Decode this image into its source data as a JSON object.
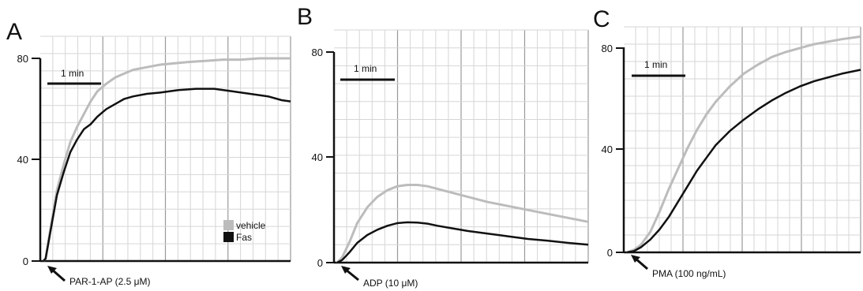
{
  "colors": {
    "vehicle": "#bcbcbc",
    "fas": "#111111",
    "grid": "#d6d6d6",
    "grid_major": "#9a9a9a",
    "axis": "#111111"
  },
  "legend": {
    "vehicle": "vehicle",
    "fas": "Fas"
  },
  "chart_data": [
    {
      "type": "line",
      "panel_letter": "A",
      "y_ticks": [
        "0",
        "40",
        "80"
      ],
      "ylim": [
        0,
        80
      ],
      "xlim": [
        0,
        5.5
      ],
      "grid": true,
      "scale_bar": {
        "label": "1 min",
        "x_start": 0.1,
        "x_end": 1.1,
        "y": 70
      },
      "annotation": "PAR-1-AP (2.5 μM)",
      "legend_position": "bottom-right",
      "series": [
        {
          "name": "vehicle",
          "x": [
            0,
            0.05,
            0.15,
            0.3,
            0.45,
            0.6,
            0.75,
            0.9,
            1.05,
            1.2,
            1.4,
            1.6,
            1.8,
            2.0,
            2.3,
            2.6,
            2.9,
            3.2,
            3.6,
            4.0,
            4.4,
            4.8,
            5.2,
            5.5
          ],
          "values": [
            0,
            1,
            12,
            28,
            38,
            47,
            53,
            58,
            63,
            67,
            70,
            72.5,
            74,
            75.5,
            76.5,
            77.5,
            78,
            78.5,
            79,
            79.5,
            79.5,
            80,
            80,
            80
          ]
        },
        {
          "name": "Fas",
          "x": [
            0,
            0.05,
            0.15,
            0.3,
            0.45,
            0.6,
            0.75,
            0.9,
            1.05,
            1.2,
            1.4,
            1.6,
            1.8,
            2.0,
            2.3,
            2.6,
            3.0,
            3.4,
            3.8,
            4.2,
            4.6,
            5.0,
            5.3,
            5.5
          ],
          "values": [
            0,
            1,
            11,
            26,
            35,
            43,
            48,
            52,
            54,
            57,
            60,
            62,
            64,
            65,
            66,
            66.5,
            67.5,
            68,
            68,
            67,
            66,
            65,
            63.5,
            63
          ]
        }
      ]
    },
    {
      "type": "line",
      "panel_letter": "B",
      "y_ticks": [
        "0",
        "40",
        "80"
      ],
      "ylim": [
        0,
        80
      ],
      "xlim": [
        0,
        5.0
      ],
      "grid": true,
      "scale_bar": {
        "label": "1 min",
        "x_start": 0.1,
        "x_end": 1.1,
        "y": 70
      },
      "annotation": "ADP (10 μM)",
      "series": [
        {
          "name": "vehicle",
          "x": [
            0,
            0.1,
            0.25,
            0.4,
            0.6,
            0.8,
            1.0,
            1.2,
            1.4,
            1.6,
            1.8,
            2.0,
            2.3,
            2.6,
            3.0,
            3.4,
            3.8,
            4.2,
            4.6,
            5.0
          ],
          "values": [
            0,
            2,
            8,
            15,
            21,
            25,
            27.5,
            29,
            29.5,
            29.5,
            29,
            28,
            26.5,
            25,
            23,
            21.5,
            20,
            18.5,
            17,
            15.5
          ]
        },
        {
          "name": "Fas",
          "x": [
            0,
            0.1,
            0.25,
            0.4,
            0.6,
            0.8,
            1.0,
            1.2,
            1.4,
            1.6,
            1.8,
            2.0,
            2.3,
            2.6,
            3.0,
            3.4,
            3.8,
            4.2,
            4.6,
            5.0
          ],
          "values": [
            0,
            1,
            4,
            7.5,
            10.5,
            12.5,
            14,
            15,
            15.3,
            15.2,
            14.8,
            14,
            13,
            12,
            11,
            10,
            9,
            8.3,
            7.5,
            6.8
          ]
        }
      ]
    },
    {
      "type": "line",
      "panel_letter": "C",
      "y_ticks": [
        "0",
        "40",
        "80"
      ],
      "ylim": [
        0,
        80
      ],
      "xlim": [
        0,
        5.0
      ],
      "grid": true,
      "scale_bar": {
        "label": "1 min",
        "x_start": 0.1,
        "x_end": 1.1,
        "y": 70
      },
      "annotation": "PMA (100 ng/mL)",
      "series": [
        {
          "name": "vehicle",
          "x": [
            0,
            0.15,
            0.3,
            0.5,
            0.7,
            0.9,
            1.1,
            1.3,
            1.5,
            1.7,
            1.9,
            2.2,
            2.5,
            2.8,
            3.1,
            3.4,
            3.7,
            4.0,
            4.3,
            4.6,
            5.0
          ],
          "values": [
            0,
            1,
            3,
            8,
            16,
            25,
            33,
            41,
            48,
            54,
            59,
            65,
            70,
            73.5,
            76.5,
            78.5,
            80,
            81.5,
            82.5,
            83.5,
            84.5
          ]
        },
        {
          "name": "Fas",
          "x": [
            0,
            0.15,
            0.3,
            0.5,
            0.7,
            0.9,
            1.1,
            1.3,
            1.5,
            1.7,
            1.9,
            2.2,
            2.5,
            2.8,
            3.1,
            3.4,
            3.7,
            4.0,
            4.3,
            4.6,
            5.0
          ],
          "values": [
            0,
            0.5,
            2,
            5,
            9,
            14,
            20,
            26,
            32,
            37,
            42,
            47.5,
            52,
            56,
            59.5,
            62.5,
            65,
            67,
            68.5,
            70,
            71.5
          ]
        }
      ]
    }
  ]
}
